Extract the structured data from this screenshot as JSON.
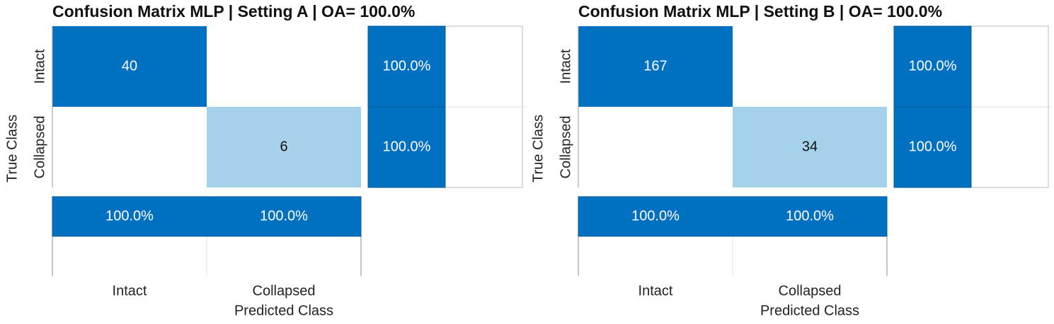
{
  "chart_data": [
    {
      "type": "confusion_matrix",
      "title": "Confusion Matrix MLP | Setting A | OA= 100.0%",
      "x_label": "Predicted Class",
      "y_label": "True Class",
      "categories": [
        "Intact",
        "Collapsed"
      ],
      "matrix": [
        [
          40,
          0
        ],
        [
          0,
          6
        ]
      ],
      "cell_colors": [
        [
          "#0070c0",
          "#ffffff"
        ],
        [
          "#ffffff",
          "#a6d1ea"
        ]
      ],
      "row_summary": {
        "values": [
          100,
          100
        ],
        "value_labels": [
          "100.0%",
          "100.0%"
        ]
      },
      "column_summary": {
        "values": [
          100,
          100
        ],
        "value_labels": [
          "100.0%",
          "100.0%"
        ]
      },
      "summary_lim": [
        0,
        100
      ],
      "summary_color": "#0070c0"
    },
    {
      "type": "confusion_matrix",
      "title": "Confusion Matrix MLP | Setting B | OA= 100.0%",
      "x_label": "Predicted Class",
      "y_label": "True Class",
      "categories": [
        "Intact",
        "Collapsed"
      ],
      "matrix": [
        [
          167,
          0
        ],
        [
          0,
          34
        ]
      ],
      "cell_colors": [
        [
          "#0070c0",
          "#ffffff"
        ],
        [
          "#ffffff",
          "#a6d1ea"
        ]
      ],
      "row_summary": {
        "values": [
          100,
          100
        ],
        "value_labels": [
          "100.0%",
          "100.0%"
        ]
      },
      "column_summary": {
        "values": [
          100,
          100
        ],
        "value_labels": [
          "100.0%",
          "100.0%"
        ]
      },
      "summary_lim": [
        0,
        100
      ],
      "summary_color": "#0070c0"
    }
  ]
}
